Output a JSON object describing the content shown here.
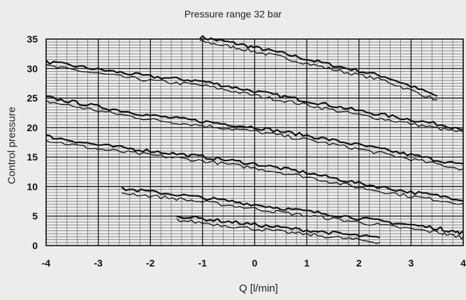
{
  "chart_data": {
    "type": "line",
    "title": "Pressure range 32 bar",
    "xlabel": "Q [l/min]",
    "ylabel": "Control pressure",
    "xlim": [
      -4,
      4
    ],
    "ylim": [
      0,
      35
    ],
    "xticks": [
      "-4",
      "-3",
      "-2",
      "-1",
      "0",
      "1",
      "2",
      "3",
      "4"
    ],
    "yticks": [
      "0",
      "5",
      "10",
      "15",
      "20",
      "25",
      "30",
      "35"
    ],
    "grid": true,
    "series": [
      {
        "x": [
          -1.05,
          -0.3,
          0.5,
          1.5,
          2.5,
          3.5
        ],
        "y": [
          35,
          33.8,
          32.3,
          30.2,
          28.3,
          25
        ]
      },
      {
        "x": [
          -4,
          -3,
          -2,
          -1,
          0,
          1,
          2,
          3,
          4
        ],
        "y": [
          30.8,
          29.5,
          28.3,
          27.5,
          25.8,
          24.2,
          22.5,
          21,
          19.5
        ]
      },
      {
        "x": [
          -4,
          -3,
          -2,
          -1,
          0,
          1,
          2,
          3,
          4
        ],
        "y": [
          24.8,
          23.2,
          21.7,
          20.7,
          19.7,
          18.3,
          16.7,
          15,
          13.3
        ]
      },
      {
        "x": [
          -4,
          -3,
          -2,
          -1,
          0,
          1,
          2,
          3,
          4
        ],
        "y": [
          18.2,
          16.7,
          15.7,
          14.7,
          13.5,
          12,
          10.2,
          8.7,
          7.5
        ]
      },
      {
        "x": [
          -2.55,
          -1.5,
          -0.5,
          0.5,
          1.5,
          2.5,
          3.5,
          4
        ],
        "y": [
          9.3,
          8.3,
          7.2,
          6,
          4.9,
          3.7,
          2.6,
          1.7
        ]
      },
      {
        "x": [
          -1.5,
          -0.5,
          0.5,
          1.5,
          2.4
        ],
        "y": [
          4.7,
          3.7,
          2.7,
          1.8,
          0.9
        ]
      }
    ]
  }
}
